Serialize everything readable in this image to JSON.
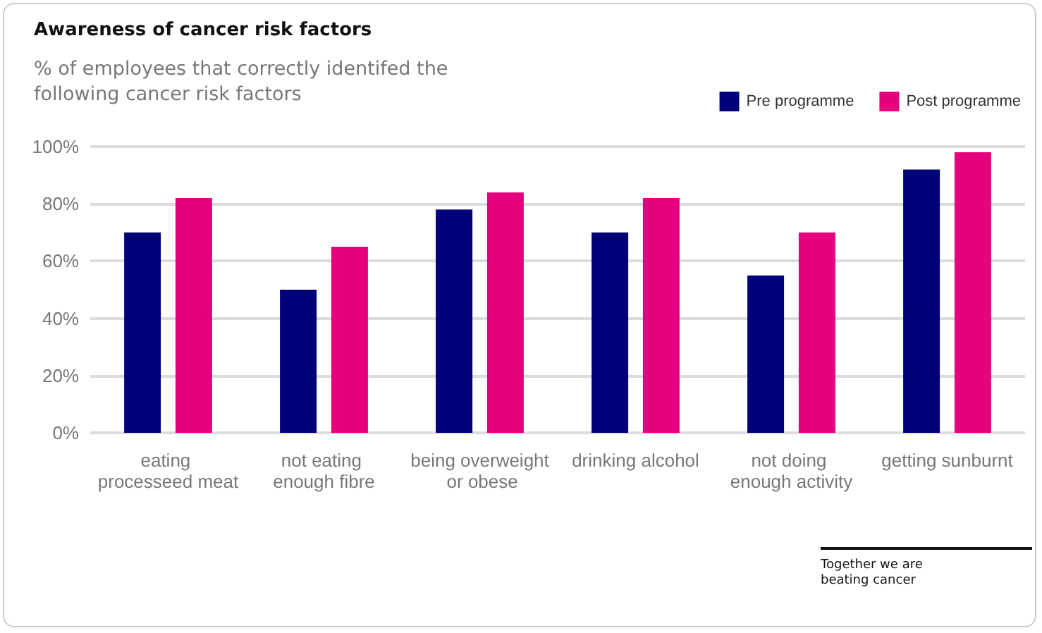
{
  "chart_data": {
    "type": "bar",
    "title": "Awareness of cancer risk factors",
    "subtitle": "% of employees that correctly identifed the following cancer risk factors",
    "categories": [
      "eating processeed meat",
      "not eating enough fibre",
      "being overweight or obese",
      "drinking alcohol",
      "not doing enough activity",
      "getting sunburnt"
    ],
    "series": [
      {
        "name": "Pre programme",
        "color": "#000078",
        "values": [
          70,
          50,
          78,
          70,
          55,
          92
        ]
      },
      {
        "name": "Post programme",
        "color": "#e6007e",
        "values": [
          82,
          65,
          84,
          82,
          70,
          98
        ]
      }
    ],
    "ylim": [
      0,
      100
    ],
    "yticks": [
      {
        "value": 0,
        "label": "0%"
      },
      {
        "value": 20,
        "label": "20%"
      },
      {
        "value": 40,
        "label": "40%"
      },
      {
        "value": 60,
        "label": "60%"
      },
      {
        "value": 80,
        "label": "80%"
      },
      {
        "value": 100,
        "label": "100%"
      }
    ],
    "grid": "y",
    "legend": "top right",
    "annotations": [
      "Together we are beating cancer"
    ]
  }
}
